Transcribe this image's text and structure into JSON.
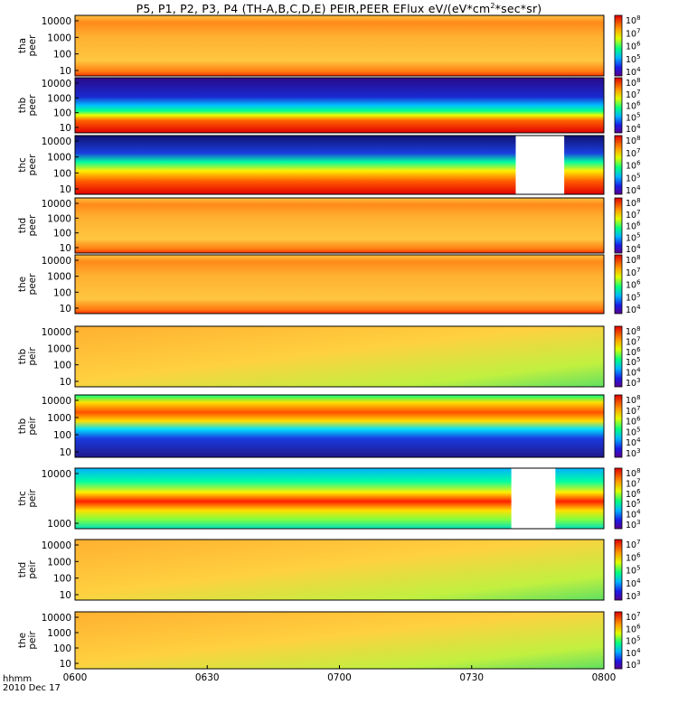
{
  "header": {
    "title_main": "P5, P1, P2, P3, P4 (TH-A,B,C,D,E) PEIR,PEER EFlux eV/(eV*cm",
    "title_sup": "2",
    "title_tail": "*sec*sr)"
  },
  "footer": {
    "time_label": "hhmm",
    "date_label": "2010 Dec 17"
  },
  "chart_data": {
    "type": "heatmap",
    "x_ticks": [
      "0600",
      "0630",
      "0700",
      "0730",
      "0800"
    ],
    "x_range": [
      "0600",
      "0800"
    ],
    "y_scale": "log",
    "color_scale": "rainbow",
    "panels": [
      {
        "probe": "tha",
        "species": "peer",
        "y_ticks": [
          "10000",
          "1000",
          "100",
          "10"
        ],
        "cbar_ticks": [
          "8",
          "7",
          "6",
          "5",
          "4"
        ]
      },
      {
        "probe": "thb",
        "species": "peer",
        "y_ticks": [
          "10000",
          "1000",
          "100",
          "10"
        ],
        "cbar_ticks": [
          "8",
          "7",
          "6",
          "5",
          "4"
        ]
      },
      {
        "probe": "thc",
        "species": "peer",
        "y_ticks": [
          "10000",
          "1000",
          "100",
          "10"
        ],
        "cbar_ticks": [
          "8",
          "7",
          "6",
          "5",
          "4"
        ],
        "data_gap": [
          "0740",
          "0751"
        ]
      },
      {
        "probe": "thd",
        "species": "peer",
        "y_ticks": [
          "10000",
          "1000",
          "100",
          "10"
        ],
        "cbar_ticks": [
          "8",
          "7",
          "6",
          "5",
          "4"
        ]
      },
      {
        "probe": "the",
        "species": "peer",
        "y_ticks": [
          "10000",
          "1000",
          "100",
          "10"
        ],
        "cbar_ticks": [
          "8",
          "7",
          "6",
          "5",
          "4"
        ]
      },
      {
        "probe": "thb",
        "species": "peir",
        "y_ticks": [
          "10000",
          "1000",
          "100",
          "10"
        ],
        "cbar_ticks": [
          "8",
          "7",
          "6",
          "5",
          "4",
          "3"
        ]
      },
      {
        "probe": "thb",
        "species": "peir",
        "y_ticks": [
          "10000",
          "1000",
          "100",
          "10"
        ],
        "cbar_ticks": [
          "8",
          "7",
          "6",
          "5",
          "4",
          "3"
        ]
      },
      {
        "probe": "thc",
        "species": "peir",
        "y_ticks": [
          "10000",
          "1000"
        ],
        "cbar_ticks": [
          "8",
          "7",
          "6",
          "5",
          "4",
          "3"
        ],
        "data_gap": [
          "0739",
          "0749"
        ]
      },
      {
        "probe": "thd",
        "species": "peir",
        "y_ticks": [
          "10000",
          "1000",
          "100",
          "10"
        ],
        "cbar_ticks": [
          "7",
          "6",
          "5",
          "4",
          "3"
        ]
      },
      {
        "probe": "the",
        "species": "peir",
        "y_ticks": [
          "10000",
          "1000",
          "100",
          "10"
        ],
        "cbar_ticks": [
          "7",
          "6",
          "5",
          "4",
          "3"
        ]
      }
    ]
  }
}
